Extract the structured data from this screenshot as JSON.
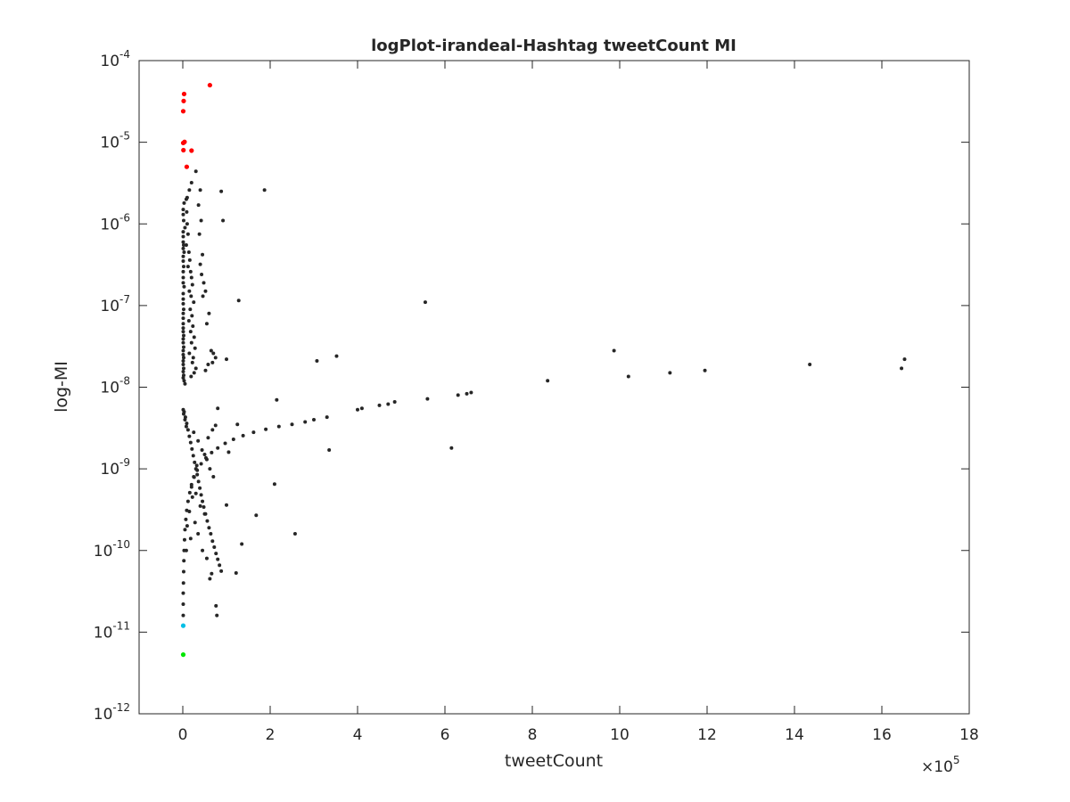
{
  "chart_data": {
    "type": "scatter",
    "title": "logPlot-irandeal-Hashtag tweetCount MI",
    "xlabel": "tweetCount",
    "ylabel": "log-MI",
    "x_scale_label": {
      "base": "×10",
      "exponent": "5"
    },
    "xlim": [
      -100000,
      1800000
    ],
    "ylim": [
      1e-12,
      0.0001
    ],
    "yscale": "log",
    "grid": false,
    "x_ticks": [
      {
        "value": 0,
        "label": "0"
      },
      {
        "value": 200000,
        "label": "2"
      },
      {
        "value": 400000,
        "label": "4"
      },
      {
        "value": 600000,
        "label": "6"
      },
      {
        "value": 800000,
        "label": "8"
      },
      {
        "value": 1000000,
        "label": "10"
      },
      {
        "value": 1200000,
        "label": "12"
      },
      {
        "value": 1400000,
        "label": "14"
      },
      {
        "value": 1600000,
        "label": "16"
      },
      {
        "value": 1800000,
        "label": "18"
      }
    ],
    "y_ticks": [
      {
        "value": 1e-12,
        "base": "10",
        "exponent": "-12"
      },
      {
        "value": 1e-11,
        "base": "10",
        "exponent": "-11"
      },
      {
        "value": 1e-10,
        "base": "10",
        "exponent": "-10"
      },
      {
        "value": 1e-09,
        "base": "10",
        "exponent": "-9"
      },
      {
        "value": 1e-08,
        "base": "10",
        "exponent": "-8"
      },
      {
        "value": 1e-07,
        "base": "10",
        "exponent": "-7"
      },
      {
        "value": 1e-06,
        "base": "10",
        "exponent": "-6"
      },
      {
        "value": 1e-05,
        "base": "10",
        "exponent": "-5"
      },
      {
        "value": 0.0001,
        "base": "10",
        "exponent": "-4"
      }
    ],
    "colors": {
      "default": "#262626",
      "red": "#ff0000",
      "cyan": "#00bfe6",
      "green": "#00e600",
      "axis": "#262626"
    },
    "series": [
      {
        "color": "red",
        "points": [
          [
            62000,
            5e-05
          ],
          [
            3000,
            3.9e-05
          ],
          [
            2000,
            3.2e-05
          ],
          [
            1000,
            2.4e-05
          ],
          [
            4000,
            1.01e-05
          ],
          [
            1000,
            9.8e-06
          ],
          [
            1500,
            8e-06
          ],
          [
            20000,
            7.9e-06
          ],
          [
            9000,
            5e-06
          ]
        ]
      },
      {
        "color": "default",
        "points": [
          [
            30000,
            4.4e-06
          ],
          [
            20000,
            3.2e-06
          ],
          [
            15000,
            2.6e-06
          ],
          [
            10000,
            2.1e-06
          ],
          [
            3000,
            1.8e-06
          ],
          [
            1000,
            1.5e-06
          ],
          [
            1000,
            1.3e-06
          ],
          [
            2000,
            1.1e-06
          ],
          [
            5000,
            9e-07
          ],
          [
            1000,
            8e-07
          ],
          [
            1000,
            7e-07
          ],
          [
            1000,
            6e-07
          ],
          [
            2000,
            5.5e-07
          ],
          [
            1000,
            5e-07
          ],
          [
            3000,
            4.5e-07
          ],
          [
            1000,
            4e-07
          ],
          [
            1000,
            3.5e-07
          ],
          [
            2000,
            3e-07
          ],
          [
            1000,
            2.6e-07
          ],
          [
            1000,
            2.2e-07
          ],
          [
            1000,
            1.9e-07
          ],
          [
            3000,
            1.7e-07
          ],
          [
            1000,
            1.4e-07
          ],
          [
            1000,
            1.2e-07
          ],
          [
            1000,
            1.05e-07
          ],
          [
            2000,
            9e-08
          ],
          [
            1000,
            8e-08
          ],
          [
            1000,
            7e-08
          ],
          [
            1000,
            6e-08
          ],
          [
            1000,
            5.3e-08
          ],
          [
            1000,
            4.8e-08
          ],
          [
            2000,
            4.3e-08
          ],
          [
            1000,
            3.9e-08
          ],
          [
            1000,
            3.5e-08
          ],
          [
            2000,
            3.1e-08
          ],
          [
            1000,
            2.8e-08
          ],
          [
            1000,
            2.5e-08
          ],
          [
            2000,
            2.3e-08
          ],
          [
            1000,
            2.1e-08
          ],
          [
            1000,
            1.9e-08
          ],
          [
            2000,
            1.7e-08
          ],
          [
            1000,
            1.55e-08
          ],
          [
            2000,
            1.4e-08
          ],
          [
            1000,
            1.3e-08
          ],
          [
            3000,
            1.2e-08
          ],
          [
            5000,
            1.1e-08
          ],
          [
            8000,
            2e-06
          ],
          [
            9000,
            1.4e-06
          ],
          [
            10000,
            1e-06
          ],
          [
            12000,
            7.5e-07
          ],
          [
            8000,
            5.5e-07
          ],
          [
            14000,
            4.5e-07
          ],
          [
            16000,
            3.6e-07
          ],
          [
            12000,
            3e-07
          ],
          [
            18000,
            2.6e-07
          ],
          [
            20000,
            2.2e-07
          ],
          [
            22000,
            1.8e-07
          ],
          [
            15000,
            1.5e-07
          ],
          [
            19000,
            1.3e-07
          ],
          [
            25000,
            1.1e-07
          ],
          [
            17000,
            9e-08
          ],
          [
            21000,
            7.5e-08
          ],
          [
            14000,
            6.5e-08
          ],
          [
            23000,
            5.6e-08
          ],
          [
            18000,
            4.8e-08
          ],
          [
            26000,
            4.1e-08
          ],
          [
            20000,
            3.5e-08
          ],
          [
            28000,
            3e-08
          ],
          [
            15000,
            2.6e-08
          ],
          [
            24000,
            2.3e-08
          ],
          [
            22000,
            2e-08
          ],
          [
            30000,
            1.7e-08
          ],
          [
            26000,
            1.5e-08
          ],
          [
            19000,
            1.35e-08
          ],
          [
            40000,
            2.6e-06
          ],
          [
            36000,
            1.7e-06
          ],
          [
            42000,
            1.1e-06
          ],
          [
            38000,
            7.5e-07
          ],
          [
            45000,
            4.2e-07
          ],
          [
            40000,
            3.2e-07
          ],
          [
            43000,
            2.4e-07
          ],
          [
            48000,
            1.9e-07
          ],
          [
            52000,
            1.5e-07
          ],
          [
            46000,
            1.3e-07
          ],
          [
            60000,
            8e-08
          ],
          [
            55000,
            6e-08
          ],
          [
            65000,
            2.8e-08
          ],
          [
            70000,
            2.6e-08
          ],
          [
            75000,
            2.3e-08
          ],
          [
            68000,
            2e-08
          ],
          [
            58000,
            1.9e-08
          ],
          [
            52000,
            1.6e-08
          ],
          [
            88000,
            2.5e-06
          ],
          [
            92000,
            1.1e-06
          ],
          [
            128000,
            1.15e-07
          ],
          [
            100000,
            2.2e-08
          ],
          [
            187000,
            2.6e-06
          ],
          [
            555000,
            1.1e-07
          ],
          [
            307000,
            2.1e-08
          ],
          [
            352000,
            2.4e-08
          ],
          [
            215000,
            7e-09
          ],
          [
            80000,
            5.5e-09
          ],
          [
            125000,
            3.5e-09
          ],
          [
            210000,
            6.5e-10
          ],
          [
            135000,
            1.2e-10
          ],
          [
            168000,
            2.7e-10
          ],
          [
            257000,
            1.6e-10
          ],
          [
            122000,
            5.3e-11
          ],
          [
            76000,
            2.1e-11
          ],
          [
            78000,
            1.6e-11
          ],
          [
            615000,
            1.8e-09
          ],
          [
            335000,
            1.7e-09
          ],
          [
            1000,
            5.3e-09
          ],
          [
            3000,
            5e-09
          ],
          [
            6000,
            4.3e-09
          ],
          [
            9000,
            3.6e-09
          ],
          [
            12000,
            3e-09
          ],
          [
            15000,
            2.5e-09
          ],
          [
            18000,
            2.1e-09
          ],
          [
            21000,
            1.75e-09
          ],
          [
            24000,
            1.45e-09
          ],
          [
            27000,
            1.2e-09
          ],
          [
            30000,
            1e-09
          ],
          [
            33000,
            8.5e-10
          ],
          [
            36000,
            7e-10
          ],
          [
            39000,
            5.8e-10
          ],
          [
            42000,
            4.8e-10
          ],
          [
            45000,
            4e-10
          ],
          [
            48000,
            3.4e-10
          ],
          [
            52000,
            2.8e-10
          ],
          [
            56000,
            2.3e-10
          ],
          [
            60000,
            1.9e-10
          ],
          [
            64000,
            1.6e-10
          ],
          [
            68000,
            1.3e-10
          ],
          [
            72000,
            1.1e-10
          ],
          [
            76000,
            9.2e-11
          ],
          [
            80000,
            7.8e-11
          ],
          [
            84000,
            6.6e-11
          ],
          [
            88000,
            5.6e-11
          ],
          [
            2000,
            4.7e-09
          ],
          [
            5000,
            4e-09
          ],
          [
            8000,
            3.3e-09
          ],
          [
            25000,
            2.8e-09
          ],
          [
            35000,
            2.2e-09
          ],
          [
            44000,
            1.7e-09
          ],
          [
            55000,
            1.3e-09
          ],
          [
            62000,
            1e-09
          ],
          [
            70000,
            8e-10
          ],
          [
            1000,
            1.2e-11
          ],
          [
            1000,
            1.6e-11
          ],
          [
            1000,
            2.2e-11
          ],
          [
            1000,
            3e-11
          ],
          [
            1500,
            4e-11
          ],
          [
            2000,
            5.5e-11
          ],
          [
            2500,
            7.5e-11
          ],
          [
            3000,
            1e-10
          ],
          [
            4000,
            1.35e-10
          ],
          [
            5000,
            1.8e-10
          ],
          [
            7000,
            2.4e-10
          ],
          [
            9000,
            3.1e-10
          ],
          [
            12000,
            4e-10
          ],
          [
            16000,
            5.1e-10
          ],
          [
            20000,
            6.4e-10
          ],
          [
            26000,
            7.9e-10
          ],
          [
            33000,
            9.6e-10
          ],
          [
            42000,
            1.15e-09
          ],
          [
            53000,
            1.36e-09
          ],
          [
            66000,
            1.58e-09
          ],
          [
            80000,
            1.8e-09
          ],
          [
            97000,
            2.05e-09
          ],
          [
            116000,
            2.3e-09
          ],
          [
            138000,
            2.55e-09
          ],
          [
            162000,
            2.8e-09
          ],
          [
            190000,
            3.05e-09
          ],
          [
            220000,
            3.3e-09
          ],
          [
            250000,
            3.5e-09
          ],
          [
            280000,
            3.75e-09
          ],
          [
            300000,
            4e-09
          ],
          [
            330000,
            4.3e-09
          ],
          [
            400000,
            5.3e-09
          ],
          [
            410000,
            5.5e-09
          ],
          [
            450000,
            6e-09
          ],
          [
            470000,
            6.2e-09
          ],
          [
            485000,
            6.6e-09
          ],
          [
            560000,
            7.2e-09
          ],
          [
            630000,
            8e-09
          ],
          [
            650000,
            8.3e-09
          ],
          [
            660000,
            8.6e-09
          ],
          [
            835000,
            1.2e-08
          ],
          [
            1020000,
            1.35e-08
          ],
          [
            1115000,
            1.5e-08
          ],
          [
            1195000,
            1.6e-08
          ],
          [
            1435000,
            1.9e-08
          ],
          [
            1645000,
            1.7e-08
          ],
          [
            1652000,
            2.2e-08
          ],
          [
            987000,
            2.8e-08
          ],
          [
            20000,
            6e-10
          ],
          [
            30000,
            5e-10
          ],
          [
            15000,
            3e-10
          ],
          [
            28000,
            2.2e-10
          ],
          [
            35000,
            1.6e-10
          ],
          [
            45000,
            1e-10
          ],
          [
            55000,
            8e-11
          ],
          [
            62000,
            4.5e-11
          ],
          [
            66000,
            5.2e-11
          ],
          [
            50000,
            2.8e-10
          ],
          [
            10000,
            2e-10
          ],
          [
            18000,
            1.4e-10
          ],
          [
            40000,
            3.5e-10
          ],
          [
            22000,
            4.5e-10
          ],
          [
            8000,
            1e-10
          ],
          [
            25000,
            8e-10
          ],
          [
            32000,
            1.1e-09
          ],
          [
            50000,
            1.5e-09
          ],
          [
            58000,
            2.4e-09
          ],
          [
            68000,
            3e-09
          ],
          [
            75000,
            3.4e-09
          ],
          [
            100000,
            3.6e-10
          ],
          [
            105000,
            1.6e-09
          ]
        ]
      },
      {
        "color": "cyan",
        "points": [
          [
            1000,
            1.2e-11
          ]
        ]
      },
      {
        "color": "green",
        "points": [
          [
            1000,
            5.3e-12
          ]
        ]
      }
    ]
  }
}
